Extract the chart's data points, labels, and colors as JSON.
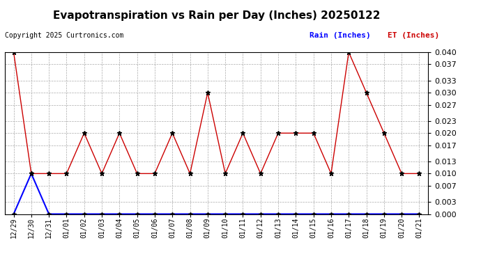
{
  "title": "Evapotranspiration vs Rain per Day (Inches) 20250122",
  "copyright": "Copyright 2025 Curtronics.com",
  "legend_rain": "Rain (Inches)",
  "legend_et": "ET (Inches)",
  "x_labels": [
    "12/29",
    "12/30",
    "12/31",
    "01/01",
    "01/02",
    "01/03",
    "01/04",
    "01/05",
    "01/06",
    "01/07",
    "01/08",
    "01/09",
    "01/10",
    "01/11",
    "01/12",
    "01/13",
    "01/14",
    "01/15",
    "01/16",
    "01/17",
    "01/18",
    "01/19",
    "01/20",
    "01/21"
  ],
  "et_values": [
    0.04,
    0.01,
    0.01,
    0.01,
    0.02,
    0.01,
    0.02,
    0.01,
    0.01,
    0.02,
    0.01,
    0.03,
    0.01,
    0.02,
    0.01,
    0.02,
    0.02,
    0.02,
    0.01,
    0.04,
    0.03,
    0.02,
    0.01,
    0.01
  ],
  "rain_values": [
    0.0,
    0.01,
    0.0,
    0.0,
    0.0,
    0.0,
    0.0,
    0.0,
    0.0,
    0.0,
    0.0,
    0.0,
    0.0,
    0.0,
    0.0,
    0.0,
    0.0,
    0.0,
    0.0,
    0.0,
    0.0,
    0.0,
    0.0,
    0.0
  ],
  "rain_color": "#0000ff",
  "et_color": "#cc0000",
  "marker_color": "black",
  "ylim": [
    0.0,
    0.04
  ],
  "yticks": [
    0.0,
    0.003,
    0.007,
    0.01,
    0.013,
    0.017,
    0.02,
    0.023,
    0.027,
    0.03,
    0.033,
    0.037,
    0.04
  ],
  "background_color": "#ffffff",
  "grid_color": "#aaaaaa"
}
